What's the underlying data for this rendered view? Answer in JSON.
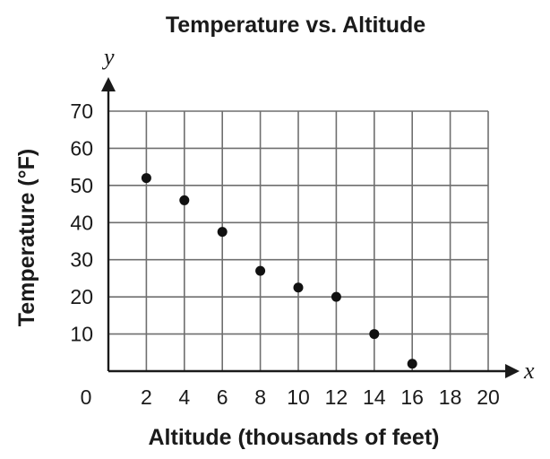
{
  "chart_data": {
    "type": "scatter",
    "title": "Temperature vs. Altitude",
    "xlabel": "Altitude (thousands of feet)",
    "ylabel": "Temperature (°F)",
    "x_axis_letter": "x",
    "y_axis_letter": "y",
    "xlim": [
      0,
      20
    ],
    "ylim": [
      0,
      70
    ],
    "x_ticks": [
      0,
      2,
      4,
      6,
      8,
      10,
      12,
      14,
      16,
      18,
      20
    ],
    "y_ticks": [
      10,
      20,
      30,
      40,
      50,
      60,
      70
    ],
    "grid": true,
    "points": [
      {
        "x": 2,
        "y": 52
      },
      {
        "x": 4,
        "y": 46
      },
      {
        "x": 6,
        "y": 37.5
      },
      {
        "x": 8,
        "y": 27
      },
      {
        "x": 10,
        "y": 22.5
      },
      {
        "x": 12,
        "y": 20
      },
      {
        "x": 14,
        "y": 10
      },
      {
        "x": 16,
        "y": 2
      }
    ]
  }
}
